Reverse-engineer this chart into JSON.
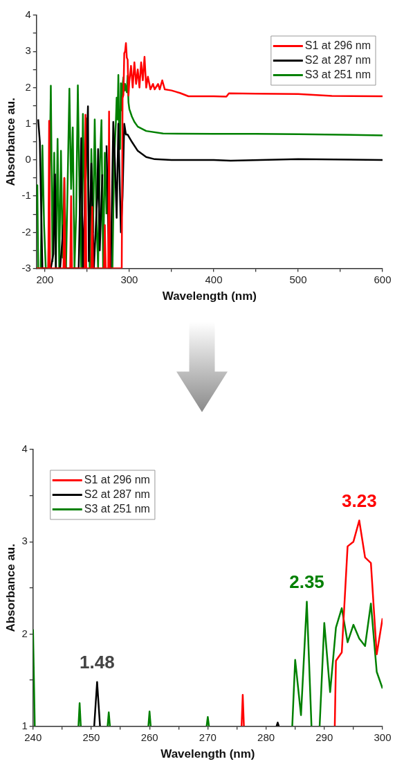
{
  "chart_data": [
    {
      "type": "line",
      "xlabel": "Wavelength (nm)",
      "ylabel": "Absorbance au.",
      "legend": "top right",
      "xlim": [
        190,
        600
      ],
      "xticks": [
        200,
        {
          "value": 250,
          "label": null
        },
        300,
        {
          "value": 350,
          "label": null
        },
        400,
        {
          "value": 450,
          "label": null
        },
        500,
        {
          "value": 550,
          "label": null
        },
        600
      ],
      "ylim": [
        -3,
        4
      ],
      "yticks": [
        -3,
        {
          "value": -2.5,
          "label": null
        },
        -2,
        {
          "value": -1.5,
          "label": null
        },
        -1,
        {
          "value": -0.5,
          "label": null
        },
        0,
        {
          "value": 0.5,
          "label": null
        },
        1,
        {
          "value": 1.5,
          "label": null
        },
        2,
        {
          "value": 2.5,
          "label": null
        },
        3,
        {
          "value": 3.5,
          "label": null
        },
        4
      ],
      "series": [
        {
          "name": "S1 at 296 nm",
          "color": "#ff0000",
          "x": [
            190,
            204,
            205,
            206,
            222,
            223,
            224,
            230,
            231,
            232,
            247,
            248,
            249,
            255,
            256,
            257,
            270,
            271,
            272,
            275,
            276,
            277,
            291,
            292,
            293,
            294,
            295,
            296,
            297,
            298,
            299,
            300,
            302,
            304,
            306,
            308,
            310,
            312,
            314,
            316,
            318,
            320,
            322,
            325,
            328,
            330,
            334,
            336,
            339,
            342,
            350,
            360,
            370,
            380,
            400,
            415,
            418,
            450,
            500,
            540,
            600
          ],
          "values": [
            -3,
            -3,
            1.08,
            -3,
            -3,
            -0.5,
            -3,
            -3,
            -1.0,
            -3,
            -3,
            1.25,
            -3,
            -3,
            -1.3,
            -3,
            -3,
            -1.8,
            -3,
            -3,
            1.34,
            -3,
            -3,
            1.71,
            1.8,
            2.95,
            3.0,
            3.23,
            2.83,
            2.77,
            1.78,
            2.17,
            2.6,
            2.0,
            2.7,
            2.1,
            2.5,
            2.0,
            2.7,
            2.2,
            2.85,
            2.0,
            2.3,
            1.95,
            2.1,
            1.95,
            2.1,
            1.95,
            2.2,
            1.95,
            1.92,
            1.85,
            1.76,
            1.76,
            1.76,
            1.75,
            1.84,
            1.83,
            1.82,
            1.77,
            1.76
          ]
        },
        {
          "name": "S2 at 287 nm",
          "color": "#000000",
          "x": [
            192,
            194,
            195,
            197,
            203,
            205,
            207,
            210,
            212,
            213,
            218,
            222,
            224,
            240,
            243,
            245,
            251,
            252,
            255,
            258,
            262,
            263,
            265,
            268,
            270,
            273,
            276,
            278,
            281,
            283,
            285,
            287,
            290,
            292,
            294,
            296,
            298,
            303,
            310,
            320,
            330,
            350,
            400,
            420,
            500,
            600
          ],
          "values": [
            1.12,
            0.5,
            -0.7,
            -3,
            -3,
            null,
            -3,
            -2.6,
            -0.4,
            -3,
            -3,
            -1.8,
            -3,
            -3,
            0.6,
            -3,
            1.48,
            -2.8,
            -0.1,
            -3,
            -1,
            0.3,
            -2.5,
            -0.4,
            null,
            0.4,
            -3,
            -3,
            1.05,
            -0.1,
            -1.6,
            1.0,
            -2.0,
            -1.0,
            1.0,
            0.7,
            0.7,
            0.5,
            0.25,
            0.08,
            0.02,
            0.0,
            0.0,
            -0.02,
            0.02,
            0.0
          ]
        },
        {
          "name": "S3 at 251 nm",
          "color": "#008000",
          "x": [
            190,
            191,
            192,
            195,
            197,
            199,
            201,
            204,
            207,
            209,
            211,
            213,
            215,
            217,
            219,
            221,
            223,
            225,
            229,
            231,
            233,
            235,
            237,
            239,
            241,
            243,
            245,
            247,
            249,
            251,
            253,
            255,
            257,
            259,
            261,
            263,
            265,
            267,
            269,
            271,
            273,
            275,
            280,
            282,
            284,
            285,
            286,
            287,
            288,
            289,
            290,
            291,
            292,
            293,
            294,
            295,
            296,
            297,
            298,
            299,
            300,
            303,
            306,
            310,
            320,
            340,
            400,
            450,
            500,
            600
          ],
          "values": [
            -1.5,
            -0.7,
            -3,
            -3,
            0.4,
            -1.8,
            -3,
            -3,
            2.05,
            -2.8,
            0.2,
            -3,
            0.58,
            -3,
            0.25,
            -2.7,
            -0.5,
            -3,
            1.97,
            -0.8,
            0.9,
            -3,
            -1.5,
            2.06,
            -1.0,
            -3,
            1.27,
            -1.5,
            1.15,
            -0.5,
            -3,
            0.3,
            -2.0,
            1.12,
            -1.6,
            -3,
            -0.2,
            1.1,
            -3,
            0.2,
            -1.5,
            null,
            -3,
            0.0,
            1.0,
            1.72,
            1.12,
            2.35,
            0.5,
            0.3,
            2.12,
            1.37,
            2.07,
            2.28,
            1.91,
            2.1,
            1.95,
            1.87,
            2.33,
            1.59,
            1.41,
            1.2,
            1.05,
            0.92,
            0.8,
            0.73,
            0.72,
            0.72,
            0.71,
            0.68
          ]
        }
      ]
    },
    {
      "type": "line",
      "xlabel": "Wavelength (nm)",
      "ylabel": "Absorbance au.",
      "legend": "top left",
      "xlim": [
        240,
        300
      ],
      "xticks": [
        240,
        {
          "value": 245,
          "label": null
        },
        250,
        {
          "value": 255,
          "label": null
        },
        260,
        {
          "value": 265,
          "label": null
        },
        270,
        {
          "value": 275,
          "label": null
        },
        280,
        {
          "value": 285,
          "label": null
        },
        290,
        {
          "value": 295,
          "label": null
        },
        300
      ],
      "ylim": [
        1,
        4
      ],
      "yticks": [
        1,
        {
          "value": 1.5,
          "label": null
        },
        2,
        {
          "value": 2.5,
          "label": null
        },
        3,
        {
          "value": 3.5,
          "label": null
        },
        4
      ],
      "series": [
        {
          "name": "S1 at 296 nm",
          "color": "#ff0000",
          "x": [
            275.8,
            276,
            276.2,
            284,
            291.8,
            292,
            293,
            294,
            295,
            296,
            297,
            298,
            299,
            300
          ],
          "values": [
            1,
            1.34,
            1,
            null,
            1,
            1.71,
            1.8,
            2.95,
            3.0,
            3.23,
            2.83,
            2.77,
            1.78,
            2.17
          ]
        },
        {
          "name": "S2 at 287 nm",
          "color": "#000000",
          "x": [
            250.5,
            251,
            251.5,
            260,
            281.8,
            282,
            282.2
          ],
          "values": [
            1,
            1.48,
            1,
            null,
            1,
            1.04,
            1
          ]
        },
        {
          "name": "S3 at 251 nm",
          "color": "#008000",
          "x": [
            240,
            240.3,
            244,
            247.8,
            248,
            248.2,
            250,
            252.8,
            253,
            253.2,
            256,
            259.8,
            260,
            260.2,
            265,
            269.8,
            270,
            270.2,
            277,
            284.5,
            285,
            286,
            287,
            287.8,
            288.5,
            289.2,
            290,
            291,
            292,
            293,
            294,
            295,
            296,
            297,
            298,
            299,
            300
          ],
          "values": [
            2.05,
            1,
            null,
            1,
            1.25,
            1,
            null,
            1,
            1.15,
            1,
            null,
            1,
            1.16,
            1,
            null,
            1,
            1.1,
            1,
            null,
            1,
            1.72,
            1.12,
            2.35,
            1,
            null,
            1,
            2.12,
            1.37,
            2.07,
            2.28,
            1.91,
            2.1,
            1.95,
            1.87,
            2.33,
            1.59,
            1.41
          ]
        }
      ],
      "annotations": [
        {
          "text": "1.48",
          "x": 251,
          "y": 1.48
        },
        {
          "text": "2.35",
          "x": 287,
          "y": 2.35
        },
        {
          "text": "3.23",
          "x": 296,
          "y": 3.23
        }
      ]
    }
  ]
}
